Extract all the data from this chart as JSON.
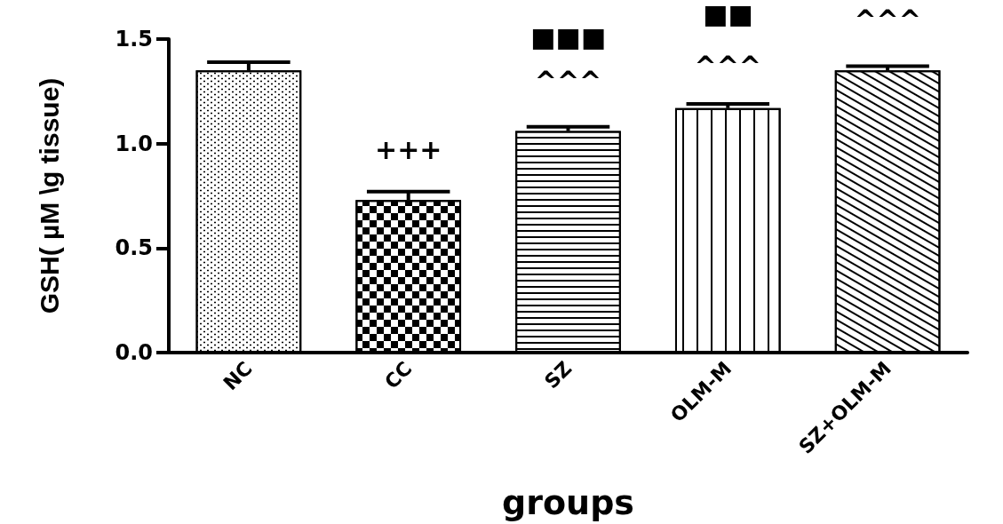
{
  "chart_data": {
    "type": "bar",
    "xlabel": "groups",
    "ylabel": "GSH( µM \\g tissue)",
    "categories": [
      "NC",
      "CC",
      "SZ",
      "OLM-M",
      "SZ+OLM-M"
    ],
    "values": [
      1.35,
      0.73,
      1.06,
      1.17,
      1.35
    ],
    "errors": [
      0.04,
      0.04,
      0.02,
      0.02,
      0.02
    ],
    "color": "#000000",
    "ylim": [
      0,
      1.5
    ],
    "yticks": [
      {
        "value": 0,
        "label": "0.0"
      },
      0.5,
      {
        "value": 1,
        "label": "1.0"
      },
      1.5
    ],
    "grid": false,
    "annotations": [
      "+++",
      "■■■",
      "^^^",
      "■■",
      "^^^",
      "^^^"
    ]
  }
}
